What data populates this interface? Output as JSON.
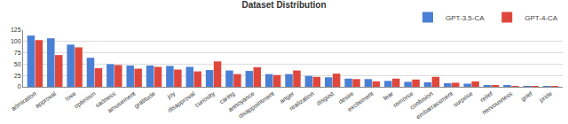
{
  "chart_data": {
    "type": "bar",
    "title": "Dataset Distribution",
    "categories": [
      "admiration",
      "approval",
      "love",
      "optimism",
      "sadness",
      "amusement",
      "gratitude",
      "joy",
      "disapproval",
      "curiosity",
      "caring",
      "annoyance",
      "disappointment",
      "anger",
      "realization",
      "disgust",
      "desire",
      "excitement",
      "fear",
      "remorse",
      "confusion",
      "embarrassment",
      "surprise",
      "relief",
      "nervousness",
      "grief",
      "pride"
    ],
    "series": [
      {
        "name": "GPT-3.5-CA",
        "color": "#4a7fd6",
        "values": [
          113,
          107,
          93,
          64,
          50,
          47,
          47,
          46,
          44,
          37,
          36,
          35,
          28,
          28,
          24,
          21,
          18,
          17,
          13,
          11,
          10,
          8,
          7,
          3,
          2,
          1,
          0.5
        ]
      },
      {
        "name": "GPT-4-CA",
        "color": "#e0473c",
        "values": [
          103,
          70,
          87,
          41,
          48,
          40,
          44,
          38,
          34,
          56,
          28,
          43,
          26,
          36,
          22,
          29,
          17,
          12,
          18,
          16,
          22,
          9,
          12,
          2,
          1,
          0.5,
          0.5
        ]
      }
    ],
    "ylim": [
      0,
      125
    ],
    "yticks": [
      0,
      25,
      50,
      75,
      100,
      125
    ],
    "grid": true,
    "legend": "upper right"
  }
}
